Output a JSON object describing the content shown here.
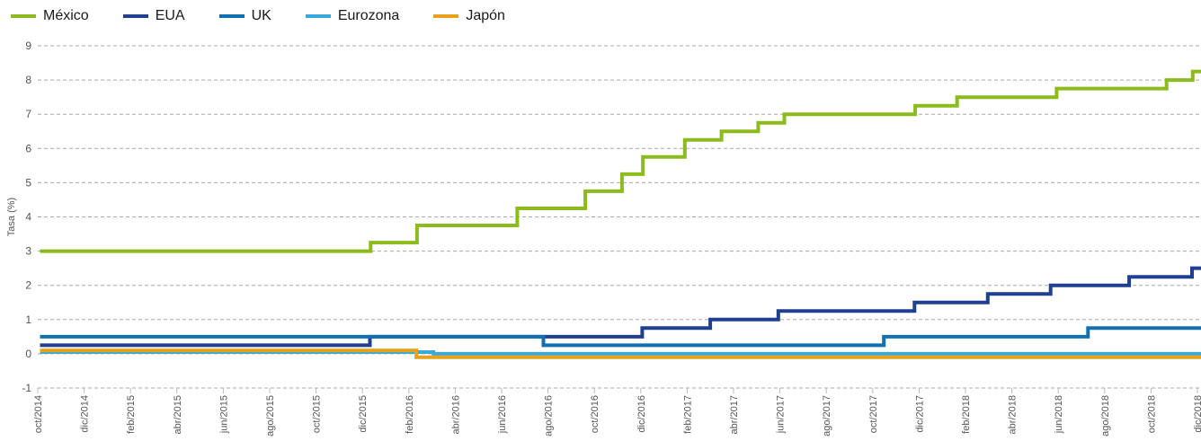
{
  "chart_data": {
    "type": "line",
    "title": "",
    "ylabel": "Tasa (%)",
    "xlabel": "",
    "ylim": [
      -1,
      9
    ],
    "yticks": [
      -1,
      0,
      1,
      2,
      3,
      4,
      5,
      6,
      7,
      8,
      9
    ],
    "grid": true,
    "legend_position": "top-left",
    "x_tick_labels": [
      "oct/2014",
      "dic/2014",
      "feb/2015",
      "abr/2015",
      "jun/2015",
      "ago/2015",
      "oct/2015",
      "dic/2015",
      "feb/2016",
      "abr/2016",
      "jun/2016",
      "ago/2016",
      "oct/2016",
      "dic/2016",
      "feb/2017",
      "abr/2017",
      "jun/2017",
      "ago/2017",
      "oct/2017",
      "dic/2017",
      "feb/2018",
      "abr/2018",
      "jun/2018",
      "ago/2018",
      "oct/2018",
      "dic/2018"
    ],
    "series": [
      {
        "name": "México",
        "color": "#8cbb1e",
        "x": [
          "2014-10-01",
          "2015-12-17",
          "2016-02-17",
          "2016-06-30",
          "2016-09-29",
          "2016-11-17",
          "2016-12-15",
          "2017-02-09",
          "2017-03-30",
          "2017-05-18",
          "2017-06-22",
          "2017-12-14",
          "2018-02-08",
          "2018-06-21",
          "2018-11-15",
          "2018-12-20",
          "2018-12-31"
        ],
        "y": [
          3.0,
          3.25,
          3.75,
          4.25,
          4.75,
          5.25,
          5.75,
          6.25,
          6.5,
          6.75,
          7.0,
          7.25,
          7.5,
          7.75,
          8.0,
          8.25,
          8.25
        ]
      },
      {
        "name": "EUA",
        "color": "#1f3f8f",
        "x": [
          "2014-10-01",
          "2015-12-16",
          "2016-12-14",
          "2017-03-15",
          "2017-06-14",
          "2017-12-13",
          "2018-03-21",
          "2018-06-13",
          "2018-09-26",
          "2018-12-19",
          "2018-12-31"
        ],
        "y": [
          0.25,
          0.5,
          0.75,
          1.0,
          1.25,
          1.5,
          1.75,
          2.0,
          2.25,
          2.5,
          2.5
        ]
      },
      {
        "name": "UK",
        "color": "#1270b0",
        "x": [
          "2014-10-01",
          "2016-08-04",
          "2017-11-02",
          "2018-08-02",
          "2018-12-31"
        ],
        "y": [
          0.5,
          0.25,
          0.5,
          0.75,
          0.75
        ]
      },
      {
        "name": "Eurozona",
        "color": "#3aa8d8",
        "x": [
          "2014-10-01",
          "2016-03-10",
          "2018-12-31"
        ],
        "y": [
          0.05,
          0.0,
          0.0
        ]
      },
      {
        "name": "Japón",
        "color": "#e6a21c",
        "x": [
          "2014-10-01",
          "2016-02-16",
          "2018-12-31"
        ],
        "y": [
          0.1,
          -0.1,
          -0.1
        ]
      }
    ]
  }
}
